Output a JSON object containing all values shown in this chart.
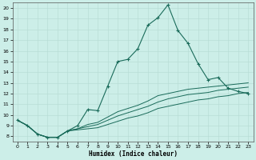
{
  "xlabel": "Humidex (Indice chaleur)",
  "bg_color": "#cceee8",
  "line_color": "#1a6b5a",
  "grid_color": "#b8ddd6",
  "xlim": [
    -0.5,
    23.5
  ],
  "ylim": [
    7.5,
    20.5
  ],
  "xticks": [
    0,
    1,
    2,
    3,
    4,
    5,
    6,
    7,
    8,
    9,
    10,
    11,
    12,
    13,
    14,
    15,
    16,
    17,
    18,
    19,
    20,
    21,
    22,
    23
  ],
  "yticks": [
    8,
    9,
    10,
    11,
    12,
    13,
    14,
    15,
    16,
    17,
    18,
    19,
    20
  ],
  "main_line": [
    9.5,
    9.0,
    8.2,
    7.9,
    7.9,
    8.5,
    9.0,
    10.5,
    10.4,
    12.7,
    15.0,
    15.2,
    16.2,
    18.4,
    19.1,
    20.3,
    17.9,
    16.7,
    14.8,
    13.3,
    13.5,
    12.5,
    12.2,
    12.0
  ],
  "line2": [
    9.5,
    9.0,
    8.2,
    7.9,
    7.9,
    8.5,
    8.7,
    9.1,
    9.3,
    9.8,
    10.3,
    10.6,
    10.9,
    11.3,
    11.8,
    12.0,
    12.2,
    12.4,
    12.5,
    12.6,
    12.7,
    12.8,
    12.9,
    13.0
  ],
  "line3": [
    9.5,
    9.0,
    8.2,
    7.9,
    7.9,
    8.5,
    8.7,
    8.9,
    9.1,
    9.5,
    9.9,
    10.2,
    10.5,
    10.8,
    11.2,
    11.5,
    11.7,
    11.9,
    12.0,
    12.1,
    12.3,
    12.4,
    12.5,
    12.6
  ],
  "line4": [
    9.5,
    9.0,
    8.2,
    7.9,
    7.9,
    8.5,
    8.6,
    8.7,
    8.8,
    9.1,
    9.4,
    9.7,
    9.9,
    10.2,
    10.6,
    10.8,
    11.0,
    11.2,
    11.4,
    11.5,
    11.7,
    11.8,
    12.0,
    12.1
  ]
}
